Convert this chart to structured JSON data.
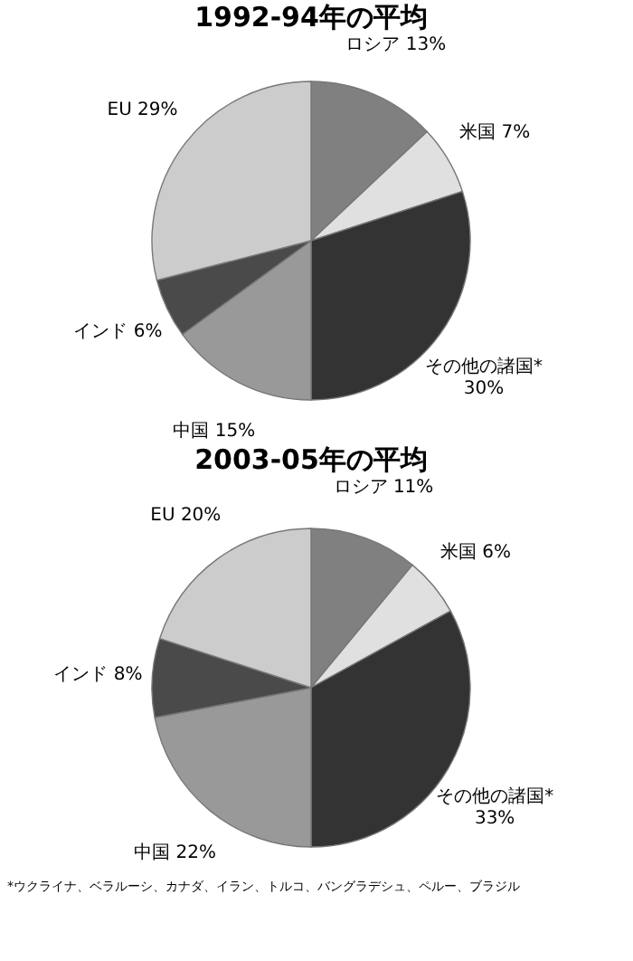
{
  "chart_data": [
    {
      "type": "pie",
      "title": "1992-94年の平均",
      "categories": [
        "ロシア",
        "米国",
        "その他の諸国*",
        "中国",
        "インド",
        "EU"
      ],
      "values": [
        13,
        7,
        30,
        15,
        6,
        29
      ],
      "value_labels": [
        "13%",
        "7%",
        "30%",
        "15%",
        "6%",
        "29%"
      ],
      "colors": [
        "#808080",
        "#e0e0e0",
        "#333333",
        "#999999",
        "#4a4a4a",
        "#cccccc"
      ]
    },
    {
      "type": "pie",
      "title": "2003-05年の平均",
      "categories": [
        "ロシア",
        "米国",
        "その他の諸国*",
        "中国",
        "インド",
        "EU"
      ],
      "values": [
        11,
        6,
        33,
        22,
        8,
        20
      ],
      "value_labels": [
        "11%",
        "6%",
        "33%",
        "22%",
        "8%",
        "20%"
      ],
      "colors": [
        "#808080",
        "#e0e0e0",
        "#333333",
        "#999999",
        "#4a4a4a",
        "#cccccc"
      ],
      "annotations": [
        "*ウクライナ、ベラルーシ、カナダ、イラン、トルコ、バングラデシュ、ペルー、ブラジル"
      ]
    }
  ]
}
